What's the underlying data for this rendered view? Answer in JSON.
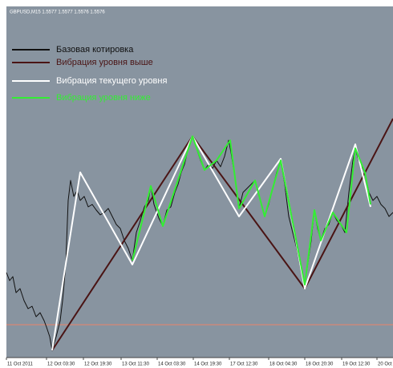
{
  "chart_data": {
    "type": "line",
    "title": "GBPUSD,M15 1.5577 1.5577 1.5576 1.5576",
    "background": "#8894a0",
    "xlim": [
      0,
      482
    ],
    "ylim": [
      1.54,
      1.583
    ],
    "xticks": [
      {
        "value": 0,
        "label": "11 Oct 2011"
      },
      {
        "value": 50,
        "label": "12 Oct 03:30"
      },
      {
        "value": 96,
        "label": "12 Oct 19:30"
      },
      {
        "value": 143,
        "label": "13 Oct 11:30"
      },
      {
        "value": 188,
        "label": "14 Oct 03:30"
      },
      {
        "value": 233,
        "label": "14 Oct 19:30"
      },
      {
        "value": 278,
        "label": "17 Oct 12:30"
      },
      {
        "value": 327,
        "label": "18 Oct 04:30"
      },
      {
        "value": 372,
        "label": "18 Oct 20:30"
      },
      {
        "value": 418,
        "label": "19 Oct 12:30"
      },
      {
        "value": 462,
        "label": "20 Oct"
      }
    ],
    "level_line": {
      "value": 1.5435,
      "color": "#c98a7c"
    },
    "series": [
      {
        "name": "Базовая котировка",
        "color": "#111111",
        "width": 1,
        "x": [
          0,
          4,
          8,
          12,
          17,
          22,
          27,
          32,
          37,
          42,
          47,
          50,
          54,
          57,
          62,
          67,
          70,
          74,
          77,
          80,
          84,
          88,
          92,
          97,
          102,
          107,
          112,
          117,
          122,
          127,
          132,
          137,
          142,
          147,
          152,
          157,
          162,
          167,
          172,
          177,
          180,
          184,
          190,
          195,
          200,
          205,
          210,
          214,
          218,
          222,
          226,
          230,
          232,
          237,
          242,
          247,
          252,
          257,
          262,
          267,
          272,
          277,
          280,
          284,
          290,
          295,
          300,
          305,
          310,
          314,
          318,
          322,
          327,
          332,
          337,
          342,
          347,
          352,
          357,
          362,
          367,
          372,
          377,
          380,
          384,
          388,
          392,
          397,
          402,
          407,
          412,
          417,
          422,
          427,
          432,
          435,
          439,
          444,
          447,
          452,
          457,
          462,
          467,
          472,
          477,
          482
        ],
        "values": [
          1.55,
          1.549,
          1.5495,
          1.5475,
          1.548,
          1.5465,
          1.5455,
          1.5458,
          1.5445,
          1.545,
          1.544,
          1.5432,
          1.542,
          1.5403,
          1.542,
          1.544,
          1.5465,
          1.551,
          1.559,
          1.5615,
          1.5595,
          1.5602,
          1.559,
          1.5595,
          1.5582,
          1.5585,
          1.5578,
          1.5572,
          1.5575,
          1.558,
          1.557,
          1.556,
          1.5555,
          1.554,
          1.553,
          1.5515,
          1.555,
          1.5565,
          1.5582,
          1.559,
          1.5608,
          1.5585,
          1.5568,
          1.5558,
          1.5578,
          1.5582,
          1.56,
          1.561,
          1.5625,
          1.5635,
          1.5652,
          1.5665,
          1.567,
          1.5655,
          1.564,
          1.5628,
          1.5635,
          1.563,
          1.564,
          1.5632,
          1.5645,
          1.5665,
          1.565,
          1.5625,
          1.558,
          1.56,
          1.5605,
          1.561,
          1.5615,
          1.56,
          1.5585,
          1.557,
          1.5585,
          1.5605,
          1.5625,
          1.564,
          1.561,
          1.557,
          1.555,
          1.553,
          1.5505,
          1.5485,
          1.552,
          1.554,
          1.5578,
          1.5555,
          1.554,
          1.5555,
          1.556,
          1.5575,
          1.5565,
          1.556,
          1.555,
          1.56,
          1.564,
          1.5655,
          1.564,
          1.563,
          1.5625,
          1.56,
          1.559,
          1.5595,
          1.5585,
          1.558,
          1.557,
          1.5575
        ]
      },
      {
        "name": "Вибрация уровня выше",
        "color": "#4a1414",
        "width": 2,
        "x": [
          57,
          232,
          372,
          482
        ],
        "values": [
          1.5403,
          1.567,
          1.548,
          1.5692
        ]
      },
      {
        "name": "Вибрация текущего уровня",
        "color": "#ffffff",
        "width": 2,
        "x": [
          57,
          92,
          157,
          232,
          290,
          342,
          372,
          435,
          454
        ],
        "values": [
          1.5403,
          1.5625,
          1.551,
          1.567,
          1.557,
          1.5642,
          1.548,
          1.566,
          1.5582
        ]
      },
      {
        "name": "Вибрация уровня ниже",
        "color": "#33ee33",
        "width": 2,
        "x": [
          157,
          180,
          195,
          232,
          247,
          262,
          279,
          290,
          310,
          322,
          342,
          372,
          384,
          392,
          407,
          424,
          435,
          447,
          454
        ],
        "values": [
          1.5515,
          1.5608,
          1.5558,
          1.567,
          1.5628,
          1.564,
          1.5665,
          1.558,
          1.5615,
          1.557,
          1.564,
          1.5485,
          1.5578,
          1.554,
          1.5575,
          1.555,
          1.5655,
          1.5625,
          1.5585
        ]
      }
    ]
  }
}
